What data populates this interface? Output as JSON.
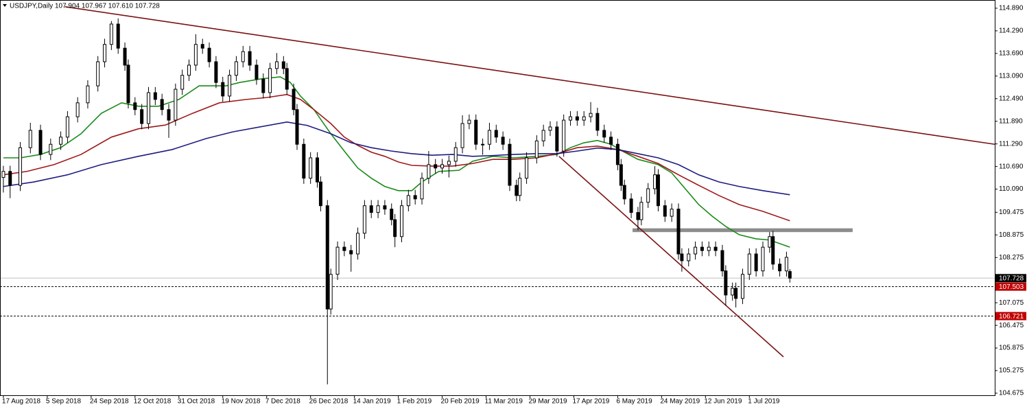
{
  "chart_data": {
    "type": "candlestick",
    "title": "USDJPY,Daily  107.904 107.967 107.610 107.728",
    "x": [
      0,
      2,
      5,
      8,
      11,
      14,
      17,
      19,
      22,
      25,
      28,
      30,
      32,
      34,
      36,
      37,
      39,
      41,
      43,
      45,
      47,
      49,
      51,
      53,
      55,
      57,
      59,
      61,
      63,
      65,
      67,
      69,
      71,
      73,
      75,
      77,
      79,
      81,
      83,
      84,
      86,
      87,
      89,
      91,
      93,
      94,
      96,
      97,
      99,
      101,
      103,
      105,
      107,
      109,
      111,
      113,
      115,
      116,
      118,
      120,
      122,
      124,
      126,
      128,
      130,
      132,
      134,
      136,
      138,
      140,
      142,
      144,
      146,
      148,
      150,
      152,
      153,
      155,
      158,
      160,
      162,
      164,
      166,
      168,
      170,
      172,
      174,
      176,
      178,
      180,
      182,
      183,
      184,
      186,
      188,
      189,
      191,
      193,
      194,
      196,
      198,
      200,
      201,
      203,
      205,
      207,
      209,
      211,
      213,
      214,
      216,
      217,
      219,
      221,
      223,
      225,
      227,
      228,
      230,
      232,
      233
    ],
    "open": [
      110.4,
      110.56,
      110.19,
      111.19,
      111.65,
      111.01,
      111.28,
      111.47,
      112.01,
      112.38,
      112.83,
      113.47,
      113.93,
      114.47,
      113.83,
      113.38,
      112.38,
      112.2,
      111.83,
      112.65,
      112.47,
      112.2,
      111.92,
      112.74,
      113.11,
      113.38,
      113.93,
      113.83,
      113.47,
      112.92,
      112.56,
      113.11,
      113.47,
      113.74,
      113.38,
      113.01,
      112.65,
      113.29,
      113.47,
      113.29,
      112.74,
      112.2,
      111.28,
      110.38,
      110.92,
      110.28,
      109.65,
      106.91,
      107.83,
      108.55,
      108.46,
      108.37,
      108.92,
      109.65,
      109.47,
      109.65,
      109.56,
      109.28,
      108.83,
      109.65,
      109.92,
      109.83,
      110.38,
      110.74,
      110.65,
      110.74,
      110.83,
      111.19,
      111.83,
      111.92,
      111.28,
      111.28,
      111.65,
      111.47,
      111.28,
      110.19,
      109.92,
      110.38,
      110.92,
      111.37,
      111.65,
      111.74,
      111.1,
      111.92,
      112.01,
      111.92,
      112.01,
      112.1,
      111.65,
      111.47,
      111.28,
      110.74,
      110.19,
      109.83,
      109.47,
      109.28,
      109.74,
      110.1,
      110.47,
      109.65,
      109.37,
      109.56,
      108.37,
      108.19,
      108.37,
      108.55,
      108.46,
      108.55,
      108.46,
      107.92,
      107.28,
      107.46,
      107.19,
      107.83,
      108.37,
      107.92,
      108.55,
      108.83,
      108.1,
      107.92,
      107.904
    ],
    "high": [
      110.71,
      110.71,
      111.34,
      111.85,
      111.8,
      111.43,
      111.62,
      112.16,
      112.53,
      112.98,
      113.62,
      114.08,
      114.55,
      114.62,
      113.98,
      113.53,
      112.53,
      112.35,
      112.8,
      112.8,
      112.62,
      112.35,
      112.89,
      113.26,
      113.53,
      114.2,
      114.08,
      113.98,
      113.62,
      113.07,
      113.26,
      113.62,
      113.89,
      113.89,
      113.53,
      113.16,
      113.44,
      113.7,
      113.62,
      113.44,
      112.89,
      112.35,
      111.43,
      111.07,
      111.07,
      110.43,
      109.8,
      107.98,
      108.7,
      108.7,
      108.61,
      109.07,
      109.8,
      109.8,
      109.8,
      109.8,
      109.71,
      109.43,
      109.8,
      110.07,
      110.07,
      110.53,
      111.1,
      110.89,
      110.89,
      110.98,
      111.34,
      112.05,
      112.07,
      112.07,
      111.43,
      111.85,
      111.8,
      111.62,
      111.43,
      110.34,
      110.53,
      111.07,
      111.52,
      111.8,
      111.89,
      111.89,
      112.07,
      112.16,
      112.16,
      112.16,
      112.4,
      112.25,
      111.8,
      111.62,
      111.43,
      110.89,
      110.34,
      109.98,
      109.62,
      109.89,
      110.25,
      110.7,
      110.62,
      109.8,
      109.71,
      109.71,
      108.52,
      108.52,
      108.7,
      108.7,
      108.7,
      108.7,
      108.61,
      108.07,
      107.61,
      107.61,
      107.98,
      108.52,
      108.52,
      108.7,
      108.95,
      108.98,
      108.25,
      108.43,
      107.967
    ],
    "low": [
      110.0,
      109.85,
      110.04,
      111.04,
      110.86,
      110.86,
      111.13,
      111.32,
      111.86,
      112.23,
      112.68,
      113.32,
      113.78,
      113.68,
      113.23,
      112.23,
      112.05,
      111.68,
      111.68,
      112.32,
      112.05,
      111.45,
      111.77,
      112.59,
      112.96,
      113.23,
      113.68,
      113.32,
      112.77,
      112.41,
      112.41,
      112.96,
      113.32,
      113.23,
      112.86,
      112.5,
      112.5,
      113.14,
      113.14,
      112.59,
      112.05,
      111.13,
      110.23,
      110.23,
      110.13,
      109.5,
      104.91,
      106.76,
      107.68,
      108.31,
      107.9,
      108.22,
      108.77,
      109.32,
      109.32,
      109.41,
      109.13,
      108.55,
      108.68,
      109.5,
      109.68,
      109.68,
      110.23,
      110.5,
      110.5,
      110.4,
      110.68,
      111.04,
      111.68,
      111.13,
      111.0,
      111.13,
      111.32,
      111.13,
      110.04,
      109.77,
      109.77,
      110.23,
      110.77,
      111.22,
      111.5,
      110.95,
      110.95,
      111.77,
      111.77,
      111.77,
      111.86,
      111.5,
      111.32,
      111.13,
      110.59,
      110.04,
      109.68,
      109.32,
      109.0,
      109.13,
      109.59,
      109.95,
      109.5,
      109.22,
      109.22,
      108.22,
      107.9,
      108.04,
      108.22,
      108.31,
      108.31,
      108.31,
      107.77,
      107.0,
      107.13,
      106.95,
      107.04,
      107.68,
      107.77,
      107.77,
      108.4,
      107.95,
      107.77,
      107.77,
      107.61
    ],
    "close": [
      110.56,
      110.19,
      111.19,
      111.65,
      111.01,
      111.28,
      111.47,
      112.01,
      112.38,
      112.83,
      113.47,
      113.93,
      114.47,
      113.83,
      113.38,
      112.38,
      112.2,
      111.83,
      112.65,
      112.47,
      112.2,
      111.92,
      112.74,
      113.11,
      113.38,
      113.93,
      113.83,
      113.47,
      112.92,
      112.56,
      113.11,
      113.47,
      113.74,
      113.38,
      113.01,
      112.65,
      113.29,
      113.47,
      113.29,
      112.74,
      112.2,
      111.28,
      110.38,
      110.92,
      110.28,
      109.65,
      106.91,
      107.83,
      108.55,
      108.46,
      108.37,
      108.92,
      109.65,
      109.47,
      109.65,
      109.56,
      109.28,
      108.83,
      109.65,
      109.92,
      109.83,
      110.38,
      110.74,
      110.65,
      110.74,
      110.83,
      111.19,
      111.83,
      111.92,
      111.28,
      111.28,
      111.65,
      111.47,
      111.28,
      110.19,
      109.92,
      110.38,
      110.92,
      111.37,
      111.65,
      111.74,
      111.1,
      111.92,
      112.01,
      111.92,
      112.01,
      112.1,
      111.65,
      111.47,
      111.28,
      110.74,
      110.19,
      109.83,
      109.47,
      109.28,
      109.74,
      110.1,
      110.47,
      109.65,
      109.37,
      109.56,
      108.37,
      108.19,
      108.37,
      108.55,
      108.46,
      108.55,
      108.46,
      107.92,
      107.28,
      107.46,
      107.19,
      107.83,
      108.37,
      107.92,
      108.55,
      108.83,
      108.1,
      107.92,
      108.28,
      107.728
    ],
    "xlim": [
      -1,
      293.7
    ],
    "ylim": [
      104.62,
      115.108
    ],
    "yticks": [
      {
        "value": 114.89,
        "label": "114.890"
      },
      {
        "value": 114.29,
        "label": "114.290"
      },
      {
        "value": 113.69,
        "label": "113.690"
      },
      {
        "value": 113.09,
        "label": "113.090"
      },
      {
        "value": 112.49,
        "label": "112.490"
      },
      {
        "value": 111.89,
        "label": "111.890"
      },
      {
        "value": 111.29,
        "label": "111.290"
      },
      {
        "value": 110.69,
        "label": "110.690"
      },
      {
        "value": 110.09,
        "label": "110.090"
      },
      109.475,
      108.875,
      108.275,
      107.075,
      106.475,
      105.875,
      105.275,
      104.675
    ],
    "xticks": [
      {
        "value": 0,
        "label": "17 Aug 2018"
      },
      {
        "value": 13,
        "label": "5 Sep 2018"
      },
      {
        "value": 26,
        "label": "24 Sep 2018"
      },
      {
        "value": 39,
        "label": "12 Oct 2018"
      },
      {
        "value": 52,
        "label": "31 Oct 2018"
      },
      {
        "value": 65,
        "label": "19 Nov 2018"
      },
      {
        "value": 78,
        "label": "7 Dec 2018"
      },
      {
        "value": 91,
        "label": "26 Dec 2018"
      },
      {
        "value": 104,
        "label": "14 Jan 2019"
      },
      {
        "value": 117,
        "label": "1 Feb 2019"
      },
      {
        "value": 130,
        "label": "20 Feb 2019"
      },
      {
        "value": 143,
        "label": "11 Mar 2019"
      },
      {
        "value": 156,
        "label": "29 Mar 2019"
      },
      {
        "value": 169,
        "label": "17 Apr 2019"
      },
      {
        "value": 182,
        "label": "6 May 2019"
      },
      {
        "value": 195,
        "label": "24 May 2019"
      },
      {
        "value": 208,
        "label": "12 Jun 2019"
      },
      {
        "value": 221,
        "label": "1 Jul 2019"
      }
    ],
    "overlays": [
      {
        "color": "#1a8a1a",
        "x": [
          0,
          5,
          11,
          17,
          23,
          29,
          35,
          40,
          46,
          52,
          58,
          62,
          66,
          70,
          76,
          82,
          85,
          88,
          92,
          97,
          101,
          105,
          109,
          113,
          117,
          121,
          124,
          129,
          135,
          139,
          145,
          151,
          158,
          164,
          168,
          172,
          176,
          180,
          184,
          188,
          194,
          198,
          202,
          206,
          210,
          214,
          218,
          223,
          227,
          233
        ],
        "values": [
          110.92,
          110.92,
          111.01,
          111.19,
          111.56,
          112.1,
          112.38,
          112.29,
          112.29,
          112.47,
          112.83,
          112.83,
          112.83,
          112.92,
          113.01,
          113.07,
          112.92,
          112.56,
          112.2,
          111.56,
          111.1,
          110.65,
          110.38,
          110.16,
          110.05,
          110.05,
          110.28,
          110.56,
          110.59,
          110.83,
          110.96,
          110.92,
          110.96,
          111.01,
          111.19,
          111.32,
          111.38,
          111.28,
          111.07,
          110.88,
          110.74,
          110.52,
          110.1,
          109.68,
          109.37,
          109.1,
          108.88,
          108.77,
          108.74,
          108.55
        ]
      },
      {
        "color": "#a01818",
        "x": [
          0,
          7,
          15,
          23,
          32,
          40,
          48,
          56,
          64,
          72,
          78,
          84,
          88,
          92,
          97,
          101,
          105,
          109,
          113,
          117,
          121,
          127,
          133,
          139,
          145,
          151,
          158,
          164,
          170,
          176,
          182,
          188,
          194,
          200,
          206,
          212,
          218,
          225,
          233
        ],
        "values": [
          110.47,
          110.56,
          110.74,
          111.01,
          111.47,
          111.69,
          111.79,
          112.1,
          112.38,
          112.47,
          112.52,
          112.6,
          112.47,
          112.2,
          111.83,
          111.47,
          111.25,
          111.07,
          110.96,
          110.81,
          110.72,
          110.7,
          110.7,
          110.77,
          110.88,
          110.88,
          110.92,
          111.03,
          111.19,
          111.23,
          111.14,
          110.96,
          110.77,
          110.47,
          110.19,
          109.92,
          109.68,
          109.5,
          109.25
        ]
      },
      {
        "color": "#1c1c80",
        "x": [
          0,
          9,
          19,
          29,
          40,
          50,
          60,
          68,
          76,
          84,
          90,
          97,
          103,
          109,
          115,
          121,
          127,
          133,
          139,
          145,
          151,
          158,
          164,
          170,
          176,
          182,
          188,
          194,
          200,
          206,
          212,
          218,
          225,
          233
        ],
        "values": [
          110.16,
          110.28,
          110.47,
          110.74,
          110.96,
          111.14,
          111.43,
          111.61,
          111.74,
          111.87,
          111.78,
          111.56,
          111.32,
          111.19,
          111.1,
          111.03,
          110.99,
          111.01,
          110.96,
          110.98,
          111.01,
          111.03,
          111.03,
          111.1,
          111.18,
          111.14,
          111.03,
          110.92,
          110.74,
          110.47,
          110.28,
          110.16,
          110.05,
          109.94
        ]
      }
    ],
    "trendlines": [
      {
        "color": "#7a1010",
        "x": [
          18.3,
          293.7
        ],
        "values": [
          114.93,
          111.28
        ]
      },
      {
        "color": "#7a1010",
        "x": [
          164.6,
          231.1
        ],
        "values": [
          110.96,
          105.64
        ]
      }
    ],
    "zones": [
      {
        "color": "#8c8c8c",
        "x": [
          186.4,
          251.6
        ],
        "values": [
          109.05,
          108.95
        ]
      }
    ],
    "current": {
      "value": 107.728,
      "color": "#000000"
    },
    "levels": [
      {
        "value": 107.503,
        "color": "#c00000"
      },
      {
        "value": 106.721,
        "color": "#c00000"
      }
    ]
  }
}
